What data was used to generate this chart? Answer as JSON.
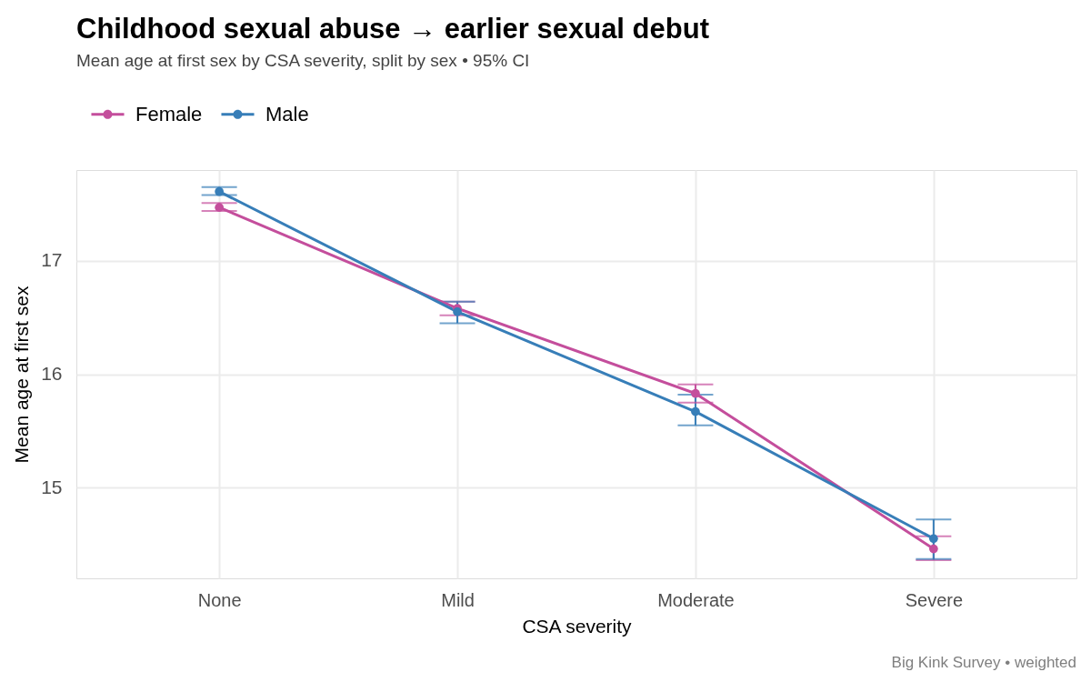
{
  "chart_data": {
    "type": "line",
    "title": "Childhood sexual abuse → earlier sexual debut",
    "subtitle": "Mean age at first sex by CSA severity, split by sex • 95% CI",
    "xlabel": "CSA severity",
    "ylabel": "Mean age at first sex",
    "categories": [
      "None",
      "Mild",
      "Moderate",
      "Severe"
    ],
    "series": [
      {
        "name": "Female",
        "color": "#c44e9c",
        "values": [
          17.47,
          16.58,
          15.83,
          14.46
        ],
        "errors": [
          [
            17.44,
            17.51
          ],
          [
            16.52,
            16.64
          ],
          [
            15.75,
            15.91
          ],
          [
            14.36,
            14.57
          ]
        ]
      },
      {
        "name": "Male",
        "color": "#377eb8",
        "values": [
          17.61,
          16.55,
          15.67,
          14.55
        ],
        "errors": [
          [
            17.58,
            17.65
          ],
          [
            16.45,
            16.64
          ],
          [
            15.55,
            15.82
          ],
          [
            14.37,
            14.72
          ]
        ]
      }
    ],
    "ylim": [
      14.2,
      17.8
    ],
    "yticks": [
      15,
      16,
      17
    ],
    "grid": true,
    "legend": "top left",
    "marker": "circle",
    "line_style": "solid",
    "annotations": [
      "Big Kink Survey • weighted"
    ]
  }
}
